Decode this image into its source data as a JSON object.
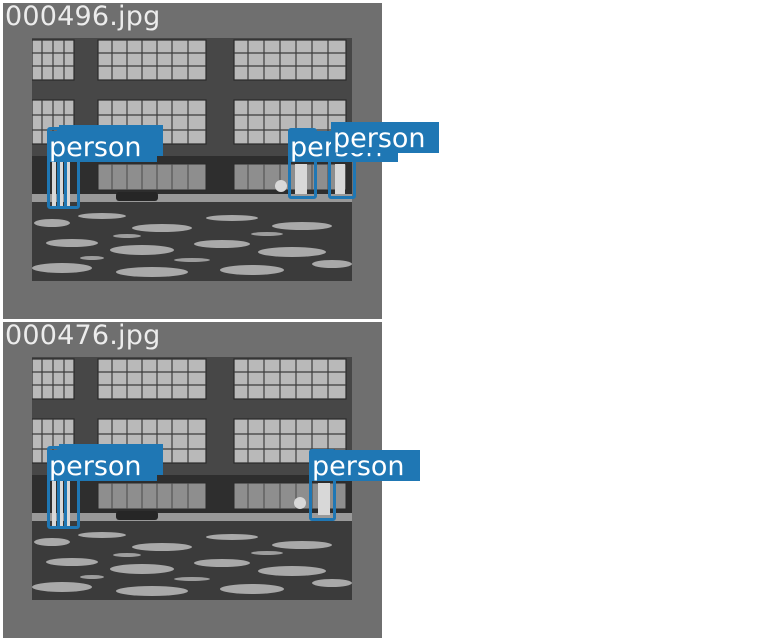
{
  "panels": [
    {
      "filename": "000496.jpg",
      "detections": [
        {
          "label": "person"
        },
        {
          "label": "person"
        },
        {
          "label": "person"
        },
        {
          "label": "person"
        },
        {
          "label": "person"
        }
      ]
    },
    {
      "filename": "000476.jpg",
      "detections": [
        {
          "label": "person"
        },
        {
          "label": "person"
        },
        {
          "label": "person"
        }
      ]
    }
  ],
  "colors": {
    "panel_background": "#6f6f6f",
    "page_background": "#ffffff",
    "box_and_label": "#1f77b4",
    "label_text": "#ffffff",
    "title_text": "#ececec"
  }
}
